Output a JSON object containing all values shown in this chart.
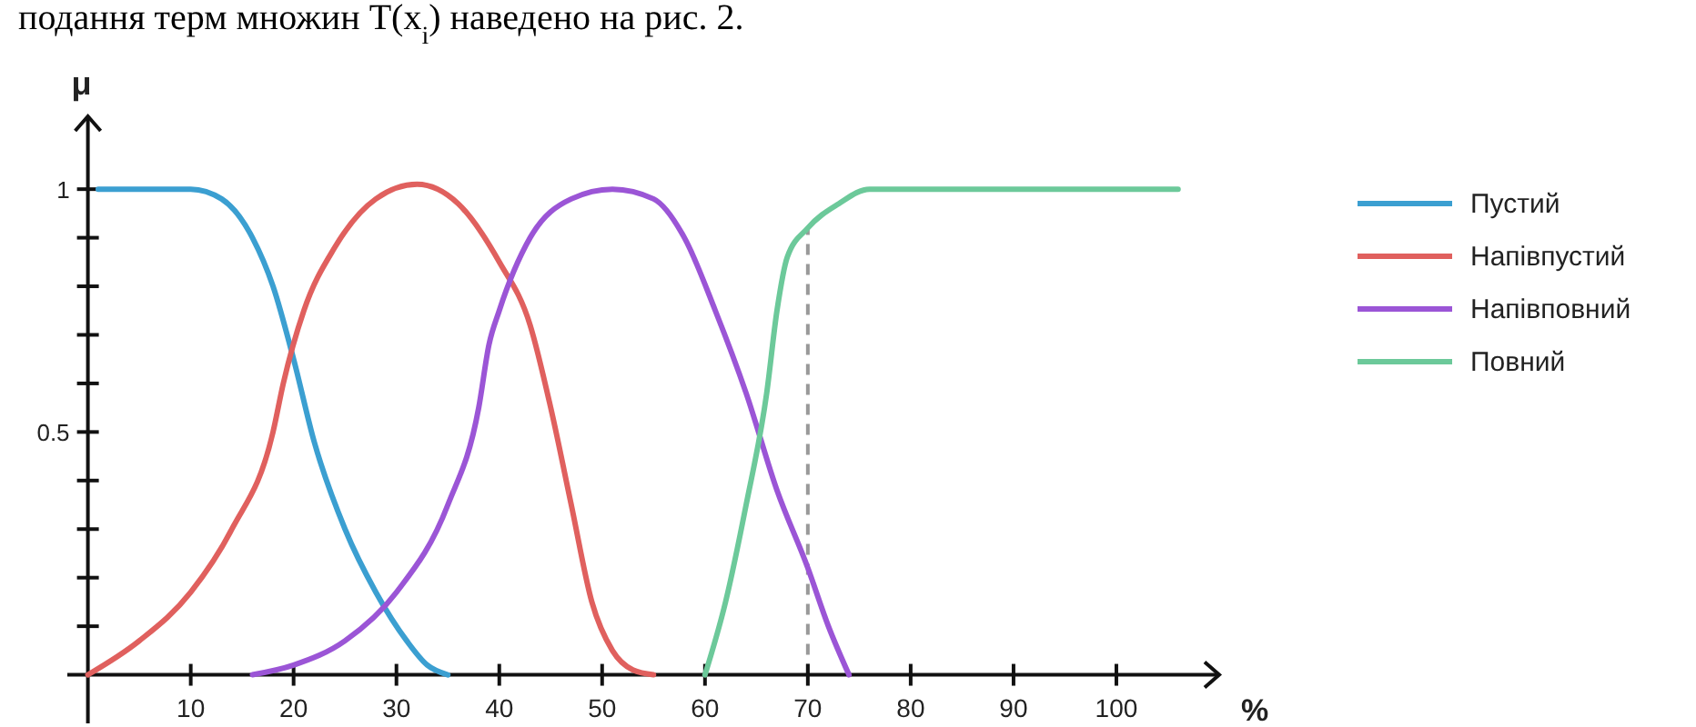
{
  "chart_data": {
    "type": "line",
    "xlabel": "%",
    "ylabel": "μ",
    "xlim": [
      -2,
      110
    ],
    "ylim": [
      -0.1,
      1.15
    ],
    "xticks": [
      10,
      20,
      30,
      40,
      50,
      60,
      70,
      80,
      90,
      100
    ],
    "yticks": [
      {
        "value": 0.1,
        "label": null
      },
      {
        "value": 0.2,
        "label": null
      },
      {
        "value": 0.3,
        "label": null
      },
      {
        "value": 0.4,
        "label": null
      },
      0.5,
      {
        "value": 0.6,
        "label": null
      },
      {
        "value": 0.7,
        "label": null
      },
      {
        "value": 0.8,
        "label": null
      },
      {
        "value": 0.9,
        "label": null
      },
      1
    ],
    "grid": false,
    "legend": "right",
    "line_style": "solid",
    "marker": "none",
    "annotations": [
      "подання терм множин T(x$_{i}$) наведено на рис. 2."
    ],
    "ref_lines": [
      {
        "axis": "x",
        "value": 70,
        "color": "#999999",
        "line_style": "dashed"
      }
    ],
    "series": [
      {
        "name": "Пустий",
        "color": "#3b9fd1",
        "x": [
          1,
          10,
          13,
          16,
          18,
          20,
          22,
          25,
          28,
          31,
          33,
          35
        ],
        "values": [
          1,
          1,
          0.98,
          0.9,
          0.8,
          0.65,
          0.48,
          0.3,
          0.17,
          0.07,
          0.02,
          0
        ]
      },
      {
        "name": "Напівпустий",
        "color": "#e0605e",
        "x": [
          0,
          5,
          10,
          14,
          18,
          19,
          21,
          24,
          28,
          32,
          36,
          40,
          43,
          45,
          47,
          49,
          51,
          53,
          55
        ],
        "values": [
          0,
          0.07,
          0.17,
          0.3,
          0.5,
          0.6,
          0.75,
          0.88,
          0.98,
          1.01,
          0.97,
          0.85,
          0.72,
          0.55,
          0.35,
          0.15,
          0.05,
          0.01,
          0
        ]
      },
      {
        "name": "Напівповний",
        "color": "#9b55d6",
        "x": [
          16,
          20,
          25,
          30,
          35,
          38,
          39,
          40,
          43,
          47,
          51,
          55,
          58,
          61,
          64,
          67,
          70,
          72,
          74
        ],
        "values": [
          0,
          0.02,
          0.07,
          0.17,
          0.35,
          0.55,
          0.68,
          0.75,
          0.9,
          0.98,
          1,
          0.98,
          0.9,
          0.75,
          0.58,
          0.38,
          0.22,
          0.1,
          0
        ]
      },
      {
        "name": "Повний",
        "color": "#6cc99a",
        "x": [
          60,
          62,
          64,
          66,
          67,
          68,
          70,
          73,
          76,
          80,
          106
        ],
        "values": [
          0,
          0.15,
          0.35,
          0.58,
          0.75,
          0.86,
          0.92,
          0.97,
          1,
          1,
          1
        ]
      }
    ]
  }
}
